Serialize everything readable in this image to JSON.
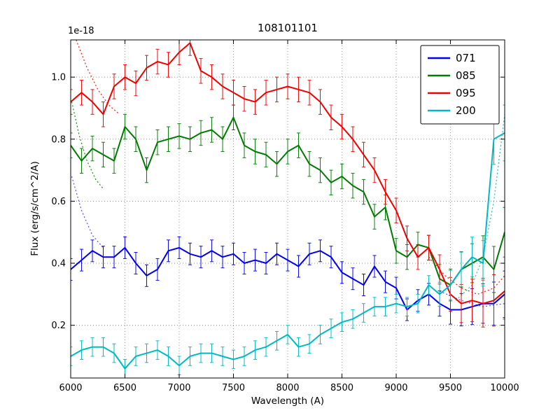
{
  "figure": {
    "title": "108101101",
    "xlabel": "Wavelength (A)",
    "ylabel": "Flux (erg/s/cm^2/A)",
    "offset_text": "1e-18"
  },
  "chart_data": {
    "type": "line",
    "title": "108101101",
    "xlabel": "Wavelength (A)",
    "ylabel": "Flux (erg/s/cm^2/A)",
    "y_scale_label": "1e-18",
    "xlim": [
      6000,
      10000
    ],
    "ylim": [
      0.03,
      1.12
    ],
    "xticks": [
      6000,
      6500,
      7000,
      7500,
      8000,
      8500,
      9000,
      9500,
      10000
    ],
    "yticks": [
      0.2,
      0.4,
      0.6,
      0.8,
      1.0
    ],
    "grid": true,
    "grid_style": "dotted",
    "legend_position": "upper right",
    "x_start": 6000,
    "x_step": 100,
    "series": [
      {
        "name": "071",
        "color": "#0000ee",
        "err": 0.035,
        "err_end": 0.075,
        "values": [
          0.38,
          0.41,
          0.44,
          0.42,
          0.42,
          0.45,
          0.4,
          0.36,
          0.38,
          0.44,
          0.45,
          0.43,
          0.42,
          0.44,
          0.42,
          0.43,
          0.4,
          0.41,
          0.4,
          0.43,
          0.41,
          0.39,
          0.43,
          0.44,
          0.42,
          0.37,
          0.35,
          0.33,
          0.39,
          0.34,
          0.32,
          0.25,
          0.28,
          0.3,
          0.27,
          0.25,
          0.25,
          0.26,
          0.27,
          0.27,
          0.3
        ]
      },
      {
        "name": "085",
        "color": "#007a00",
        "err": 0.04,
        "err_end": 0.08,
        "values": [
          0.78,
          0.73,
          0.77,
          0.75,
          0.73,
          0.84,
          0.8,
          0.7,
          0.79,
          0.8,
          0.81,
          0.8,
          0.82,
          0.83,
          0.8,
          0.87,
          0.78,
          0.76,
          0.75,
          0.72,
          0.76,
          0.78,
          0.72,
          0.7,
          0.66,
          0.68,
          0.65,
          0.63,
          0.55,
          0.58,
          0.44,
          0.42,
          0.46,
          0.45,
          0.35,
          0.33,
          0.38,
          0.4,
          0.42,
          0.38,
          0.5
        ]
      },
      {
        "name": "095",
        "color": "#ee0000",
        "err": 0.04,
        "err_end": 0.09,
        "values": [
          0.92,
          0.95,
          0.92,
          0.88,
          0.97,
          1.0,
          0.98,
          1.03,
          1.05,
          1.04,
          1.08,
          1.11,
          1.02,
          1.0,
          0.97,
          0.95,
          0.93,
          0.92,
          0.95,
          0.96,
          0.97,
          0.96,
          0.95,
          0.92,
          0.87,
          0.84,
          0.8,
          0.75,
          0.7,
          0.63,
          0.57,
          0.48,
          0.42,
          0.45,
          0.38,
          0.3,
          0.27,
          0.28,
          0.27,
          0.28,
          0.31
        ]
      },
      {
        "name": "200",
        "color": "#00b8c4",
        "err": 0.03,
        "err_end": 0.09,
        "values": [
          0.1,
          0.12,
          0.13,
          0.13,
          0.11,
          0.06,
          0.1,
          0.11,
          0.12,
          0.1,
          0.07,
          0.1,
          0.11,
          0.11,
          0.1,
          0.09,
          0.1,
          0.12,
          0.13,
          0.15,
          0.17,
          0.13,
          0.14,
          0.17,
          0.19,
          0.21,
          0.22,
          0.24,
          0.26,
          0.26,
          0.27,
          0.26,
          0.27,
          0.33,
          0.3,
          0.33,
          0.38,
          0.42,
          0.4,
          0.8,
          0.82
        ]
      }
    ],
    "dotted_overlays": [
      {
        "color": "#ee0000",
        "points": [
          [
            6050,
            1.12
          ],
          [
            6150,
            1.03
          ],
          [
            6250,
            0.96
          ],
          [
            6350,
            0.91
          ],
          [
            6450,
            0.88
          ]
        ]
      },
      {
        "color": "#007a00",
        "points": [
          [
            6010,
            0.92
          ],
          [
            6080,
            0.81
          ],
          [
            6150,
            0.73
          ],
          [
            6230,
            0.67
          ],
          [
            6300,
            0.64
          ]
        ]
      },
      {
        "color": "#4444dd",
        "points": [
          [
            6010,
            0.68
          ],
          [
            6100,
            0.57
          ],
          [
            6200,
            0.49
          ],
          [
            6300,
            0.45
          ]
        ]
      },
      {
        "color": "#ee0000",
        "points": [
          [
            9300,
            0.42
          ],
          [
            9450,
            0.36
          ],
          [
            9600,
            0.32
          ],
          [
            9750,
            0.3
          ],
          [
            9900,
            0.32
          ],
          [
            10000,
            0.36
          ]
        ]
      },
      {
        "color": "#00b8c4",
        "points": [
          [
            9550,
            0.28
          ],
          [
            9700,
            0.33
          ],
          [
            9800,
            0.42
          ],
          [
            9900,
            0.6
          ],
          [
            10000,
            0.88
          ]
        ]
      },
      {
        "color": "#4444dd",
        "points": [
          [
            9400,
            0.31
          ],
          [
            9600,
            0.28
          ],
          [
            9800,
            0.26
          ],
          [
            10000,
            0.27
          ]
        ]
      }
    ]
  }
}
